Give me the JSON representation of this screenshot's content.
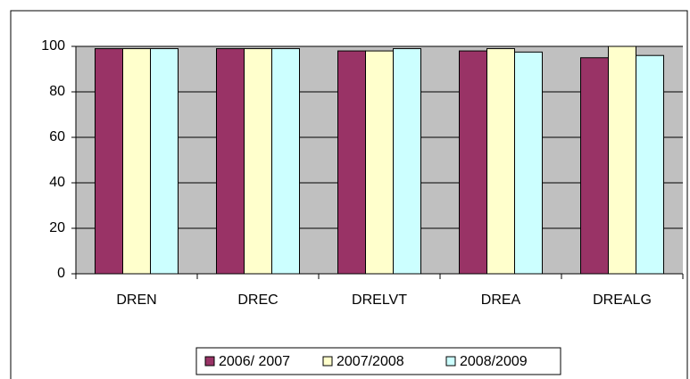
{
  "chart_data": {
    "type": "bar",
    "categories": [
      "DREN",
      "DREC",
      "DRELVT",
      "DREA",
      "DREALG"
    ],
    "series": [
      {
        "name": "2006/ 2007",
        "color": "#993366",
        "values": [
          99,
          99,
          98,
          98,
          95
        ]
      },
      {
        "name": "2007/2008",
        "color": "#ffffcc",
        "values": [
          99,
          99,
          98,
          99,
          100
        ]
      },
      {
        "name": "2008/2009",
        "color": "#ccffff",
        "values": [
          99,
          99,
          99,
          97.5,
          96
        ]
      }
    ],
    "ylim": [
      0,
      100
    ],
    "yticks": [
      0,
      20,
      40,
      60,
      80,
      100
    ],
    "grid": true,
    "plot_background": "#c0c0c0",
    "legend": "bottom"
  }
}
